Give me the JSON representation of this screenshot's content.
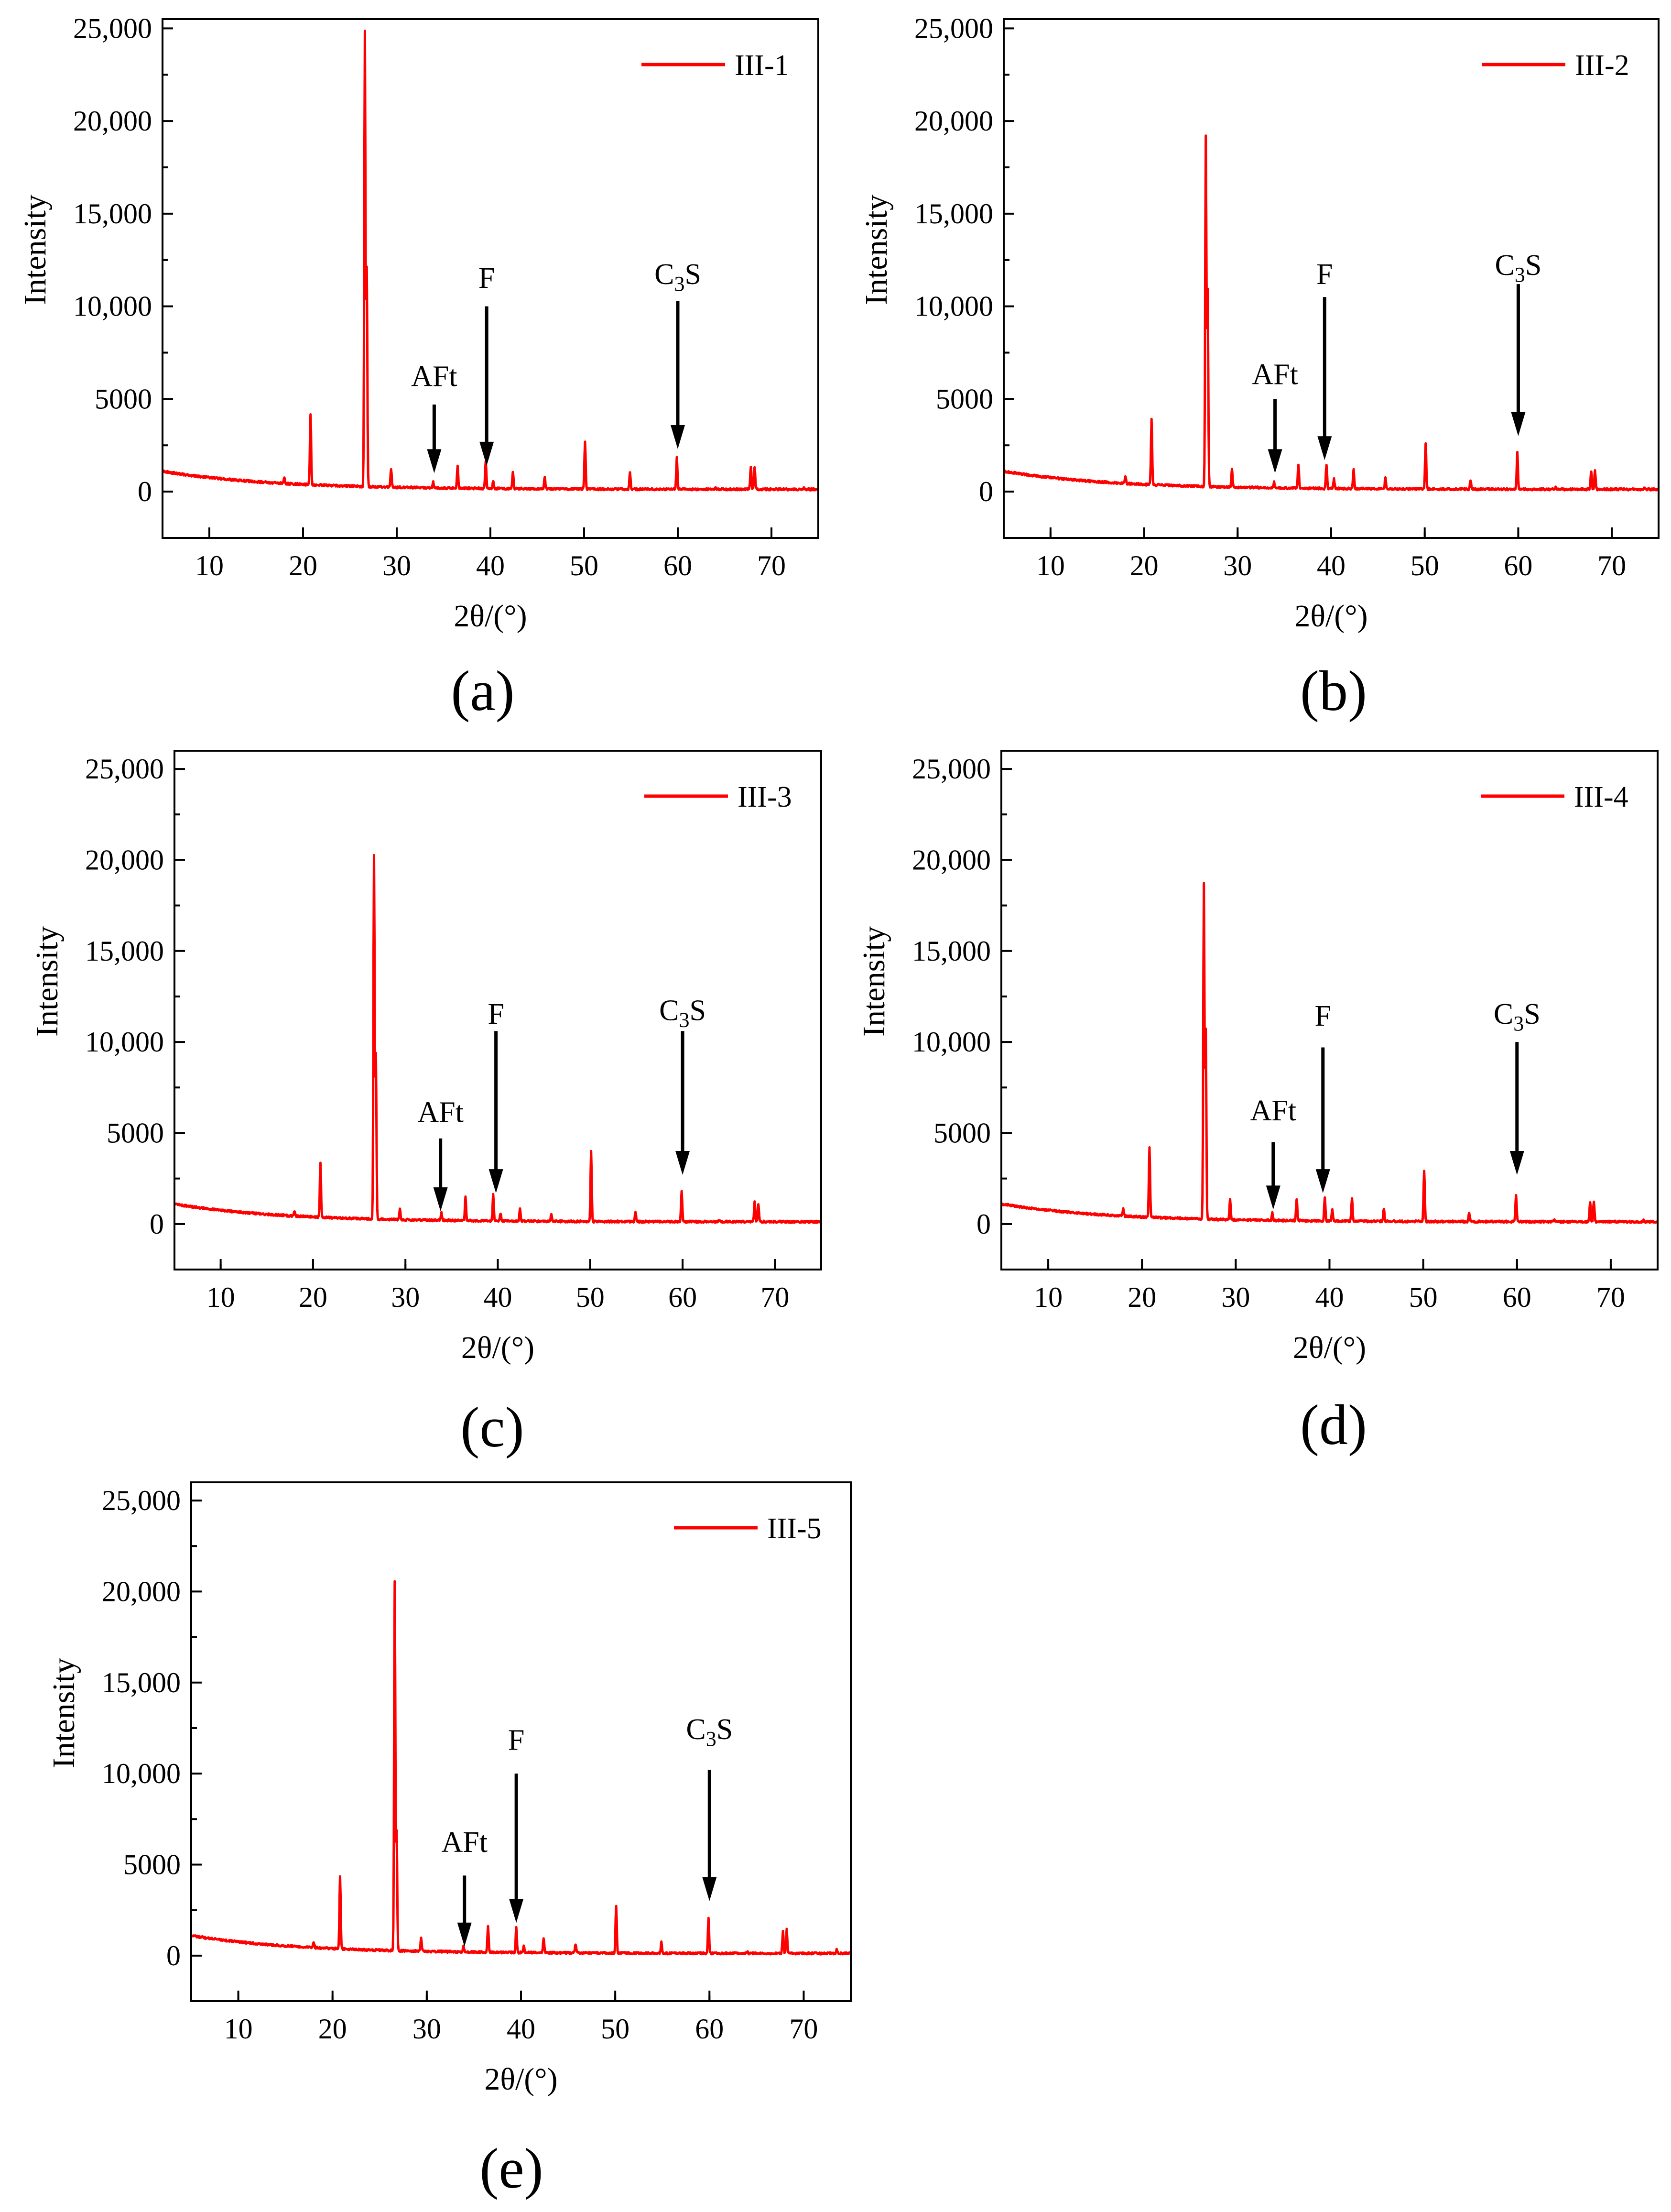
{
  "colors": {
    "series": "#ff0000",
    "axis": "#000000",
    "background": "#ffffff"
  },
  "chart_data": [
    {
      "type": "line",
      "panel": "(a)",
      "series_name": "III-1",
      "xlabel": "2θ/(°)",
      "ylabel": "Intensity",
      "xlim": [
        5,
        75
      ],
      "ylim": [
        -2500,
        25500
      ],
      "xticks": [
        10,
        20,
        30,
        40,
        50,
        60,
        70
      ],
      "yticks": [
        0,
        5000,
        10000,
        15000,
        20000,
        25000
      ],
      "ytick_labels": [
        "0",
        "5000",
        "10,000",
        "15,000",
        "20,000",
        "25,000"
      ],
      "baseline": {
        "start": 1100,
        "end": 120,
        "decay": 6
      },
      "peaks": [
        [
          18.0,
          600
        ],
        [
          20.8,
          4100
        ],
        [
          26.6,
          24800
        ],
        [
          26.8,
          12000
        ],
        [
          29.4,
          1300
        ],
        [
          33.9,
          600
        ],
        [
          36.5,
          1500
        ],
        [
          39.5,
          1800
        ],
        [
          40.3,
          700
        ],
        [
          42.4,
          1200
        ],
        [
          45.8,
          900
        ],
        [
          50.1,
          2900
        ],
        [
          54.9,
          1200
        ],
        [
          59.9,
          2000
        ],
        [
          64.0,
          400
        ],
        [
          67.8,
          1500
        ],
        [
          68.2,
          1500
        ],
        [
          73.5,
          400
        ]
      ],
      "annotations": [
        {
          "label": "AFt",
          "x": 34.0,
          "text_y": 5700,
          "arrow_top": 4700,
          "arrow_bottom": 1000
        },
        {
          "label": "F",
          "x": 39.6,
          "text_y": 11000,
          "arrow_top": 10000,
          "arrow_bottom": 1400
        },
        {
          "label": "C",
          "sub": "3",
          "tail": "S",
          "x": 60.0,
          "text_y": 11200,
          "arrow_top": 10300,
          "arrow_bottom": 2300
        }
      ]
    },
    {
      "type": "line",
      "panel": "(b)",
      "series_name": "III-2",
      "xlabel": "2θ/(°)",
      "ylabel": "Intensity",
      "xlim": [
        5,
        75
      ],
      "ylim": [
        -2500,
        25500
      ],
      "xticks": [
        10,
        20,
        30,
        40,
        50,
        60,
        70
      ],
      "yticks": [
        0,
        5000,
        10000,
        15000,
        20000,
        25000
      ],
      "ytick_labels": [
        "0",
        "5000",
        "10,000",
        "15,000",
        "20,000",
        "25,000"
      ],
      "baseline": {
        "start": 1100,
        "end": 120,
        "decay": 6
      },
      "peaks": [
        [
          18.0,
          700
        ],
        [
          20.8,
          3800
        ],
        [
          26.6,
          19200
        ],
        [
          26.8,
          10800
        ],
        [
          29.4,
          1300
        ],
        [
          33.9,
          600
        ],
        [
          36.5,
          1600
        ],
        [
          39.5,
          1600
        ],
        [
          40.3,
          800
        ],
        [
          42.4,
          1300
        ],
        [
          45.8,
          900
        ],
        [
          50.1,
          2800
        ],
        [
          54.9,
          800
        ],
        [
          59.9,
          2300
        ],
        [
          64.0,
          400
        ],
        [
          67.8,
          1300
        ],
        [
          68.2,
          1300
        ],
        [
          73.5,
          400
        ]
      ],
      "annotations": [
        {
          "label": "AFt",
          "x": 34.0,
          "text_y": 5800,
          "arrow_top": 5000,
          "arrow_bottom": 1000
        },
        {
          "label": "F",
          "x": 39.3,
          "text_y": 11200,
          "arrow_top": 10500,
          "arrow_bottom": 1700
        },
        {
          "label": "C",
          "sub": "3",
          "tail": "S",
          "x": 60.0,
          "text_y": 11700,
          "arrow_top": 11200,
          "arrow_bottom": 3000
        }
      ]
    },
    {
      "type": "line",
      "panel": "(c)",
      "series_name": "III-3",
      "xlabel": "2θ/(°)",
      "ylabel": "Intensity",
      "xlim": [
        5,
        75
      ],
      "ylim": [
        -2500,
        26000
      ],
      "xticks": [
        10,
        20,
        30,
        40,
        50,
        60,
        70
      ],
      "yticks": [
        0,
        5000,
        10000,
        15000,
        20000,
        25000
      ],
      "ytick_labels": [
        "0",
        "5000",
        "10,000",
        "15,000",
        "20,000",
        "25,000"
      ],
      "baseline": {
        "start": 1100,
        "end": 120,
        "decay": 6
      },
      "peaks": [
        [
          18.0,
          600
        ],
        [
          20.8,
          3300
        ],
        [
          26.6,
          20200
        ],
        [
          26.8,
          9300
        ],
        [
          29.4,
          900
        ],
        [
          33.9,
          700
        ],
        [
          36.5,
          1600
        ],
        [
          39.5,
          1800
        ],
        [
          40.3,
          700
        ],
        [
          42.4,
          1000
        ],
        [
          45.8,
          700
        ],
        [
          50.1,
          4200
        ],
        [
          54.9,
          800
        ],
        [
          59.9,
          2000
        ],
        [
          64.0,
          400
        ],
        [
          67.8,
          1400
        ],
        [
          68.2,
          1300
        ],
        [
          73.5,
          300
        ]
      ],
      "annotations": [
        {
          "label": "AFt",
          "x": 33.8,
          "text_y": 5600,
          "arrow_top": 4700,
          "arrow_bottom": 700
        },
        {
          "label": "F",
          "x": 39.8,
          "text_y": 11000,
          "arrow_top": 10600,
          "arrow_bottom": 1700
        },
        {
          "label": "C",
          "sub": "3",
          "tail": "S",
          "x": 60.0,
          "text_y": 11200,
          "arrow_top": 10600,
          "arrow_bottom": 2700
        }
      ]
    },
    {
      "type": "line",
      "panel": "(d)",
      "series_name": "III-4",
      "xlabel": "2θ/(°)",
      "ylabel": "Intensity",
      "xlim": [
        5,
        75
      ],
      "ylim": [
        -2500,
        26000
      ],
      "xticks": [
        10,
        20,
        30,
        40,
        50,
        60,
        70
      ],
      "yticks": [
        0,
        5000,
        10000,
        15000,
        20000,
        25000
      ],
      "ytick_labels": [
        "0",
        "5000",
        "10,000",
        "15,000",
        "20,000",
        "25,000"
      ],
      "baseline": {
        "start": 1100,
        "end": 120,
        "decay": 6
      },
      "peaks": [
        [
          18.0,
          700
        ],
        [
          20.8,
          4100
        ],
        [
          26.6,
          18700
        ],
        [
          26.8,
          10600
        ],
        [
          29.4,
          1400
        ],
        [
          33.9,
          700
        ],
        [
          36.5,
          1500
        ],
        [
          39.5,
          1600
        ],
        [
          40.3,
          900
        ],
        [
          42.4,
          1500
        ],
        [
          45.8,
          1000
        ],
        [
          50.1,
          3100
        ],
        [
          54.9,
          800
        ],
        [
          59.9,
          1800
        ],
        [
          64.0,
          400
        ],
        [
          67.8,
          1400
        ],
        [
          68.2,
          1400
        ],
        [
          73.5,
          400
        ]
      ],
      "annotations": [
        {
          "label": "AFt",
          "x": 34.0,
          "text_y": 5700,
          "arrow_top": 4500,
          "arrow_bottom": 800
        },
        {
          "label": "F",
          "x": 39.3,
          "text_y": 10900,
          "arrow_top": 9700,
          "arrow_bottom": 1700
        },
        {
          "label": "C",
          "sub": "3",
          "tail": "S",
          "x": 60.0,
          "text_y": 11000,
          "arrow_top": 10000,
          "arrow_bottom": 2700
        }
      ]
    },
    {
      "type": "line",
      "panel": "(e)",
      "series_name": "III-5",
      "xlabel": "2θ/(°)",
      "ylabel": "Intensity",
      "xlim": [
        5,
        75
      ],
      "ylim": [
        -2500,
        26000
      ],
      "xticks": [
        10,
        20,
        30,
        40,
        50,
        60,
        70
      ],
      "yticks": [
        0,
        5000,
        10000,
        15000,
        20000,
        25000
      ],
      "ytick_labels": [
        "0",
        "5000",
        "10,000",
        "15,000",
        "20,000",
        "25,000"
      ],
      "baseline": {
        "start": 1100,
        "end": 120,
        "decay": 6
      },
      "peaks": [
        [
          18.0,
          600
        ],
        [
          20.8,
          4300
        ],
        [
          26.6,
          20500
        ],
        [
          26.8,
          6800
        ],
        [
          29.4,
          1000
        ],
        [
          33.9,
          600
        ],
        [
          36.5,
          1700
        ],
        [
          39.5,
          1700
        ],
        [
          40.3,
          700
        ],
        [
          42.4,
          1100
        ],
        [
          45.8,
          800
        ],
        [
          50.1,
          2900
        ],
        [
          54.9,
          900
        ],
        [
          59.9,
          2200
        ],
        [
          64.0,
          400
        ],
        [
          67.8,
          1500
        ],
        [
          68.2,
          1600
        ],
        [
          73.5,
          500
        ]
      ],
      "annotations": [
        {
          "label": "AFt",
          "x": 34.0,
          "text_y": 5700,
          "arrow_top": 4400,
          "arrow_bottom": 500
        },
        {
          "label": "F",
          "x": 39.5,
          "text_y": 11300,
          "arrow_top": 10000,
          "arrow_bottom": 1800
        },
        {
          "label": "C",
          "sub": "3",
          "tail": "S",
          "x": 60.0,
          "text_y": 11900,
          "arrow_top": 10200,
          "arrow_bottom": 3000
        }
      ]
    }
  ]
}
